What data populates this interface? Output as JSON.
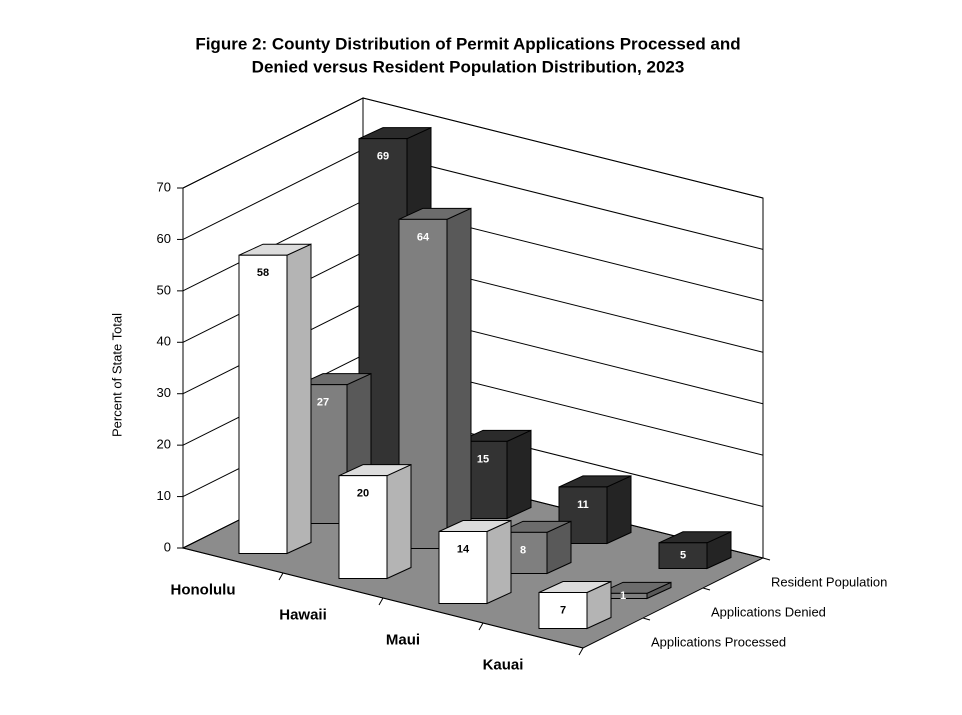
{
  "chart_data": {
    "type": "bar3d",
    "title": [
      "Figure 2:   County Distribution of Permit Applications Processed and",
      "Denied versus Resident Population Distribution, 2023"
    ],
    "y_label": "Percent of State Total",
    "categories": [
      "Honolulu",
      "Hawaii",
      "Maui",
      "Kauai"
    ],
    "series": [
      {
        "name": "Applications Processed",
        "color": "#ffffff",
        "values": [
          58,
          20,
          14,
          7
        ]
      },
      {
        "name": "Applications Denied",
        "color": "#7f7f7f",
        "values": [
          27,
          64,
          8,
          1
        ]
      },
      {
        "name": "Resident Population",
        "color": "#333333",
        "values": [
          69,
          15,
          11,
          5
        ]
      }
    ],
    "ylim": [
      0,
      70
    ],
    "yticks": [
      0,
      10,
      20,
      30,
      40,
      50,
      60,
      70
    ],
    "grid": true
  }
}
